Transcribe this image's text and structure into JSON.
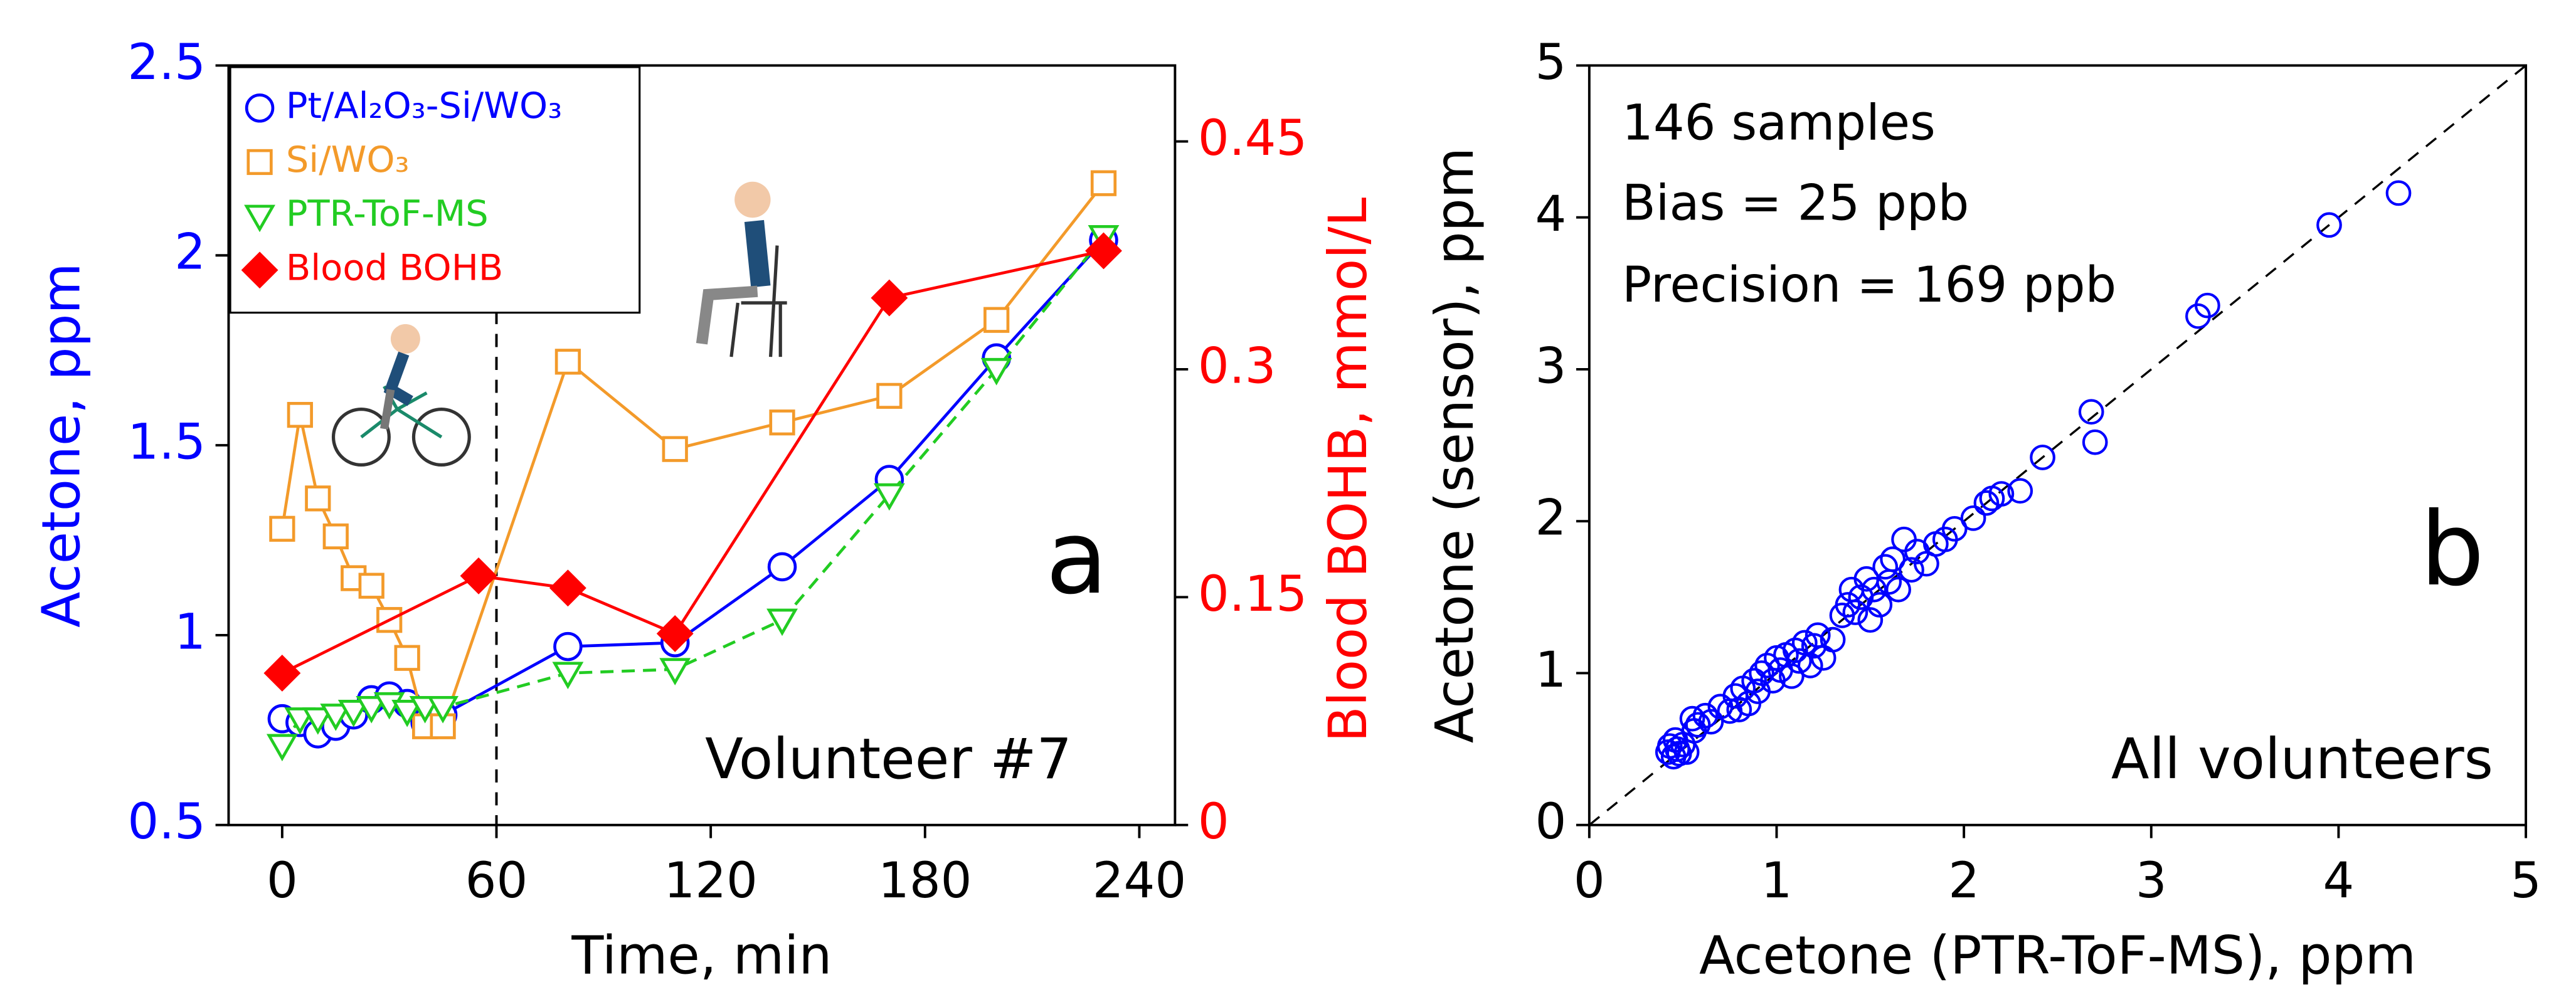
{
  "chart_data": [
    {
      "type": "line",
      "xlabel": "Time, min",
      "ylabel": "Acetone, ppm",
      "y2label": "Blood BOHB, mmol/L",
      "y_color": "#0000ff",
      "y2_color": "#ff0000",
      "xlim": [
        -15,
        250
      ],
      "xticks": [
        0,
        60,
        120,
        180,
        240
      ],
      "ylim": [
        0.5,
        2.5
      ],
      "yticks": [
        0.5,
        1.0,
        1.5,
        2.0,
        2.5
      ],
      "y2lim": [
        0,
        0.5
      ],
      "y2ticks": [
        0,
        0.15,
        0.3,
        0.45
      ],
      "vline_x": 60,
      "annotations": [
        "a",
        "Volunteer #7"
      ],
      "series": [
        {
          "name": "Pt/Al₂O₃-Si/WO₃",
          "color": "#0000ff",
          "marker": "circle",
          "linestyle": "solid",
          "x": [
            0,
            5,
            10,
            15,
            20,
            25,
            30,
            35,
            40,
            45,
            80,
            110,
            140,
            170,
            200,
            230
          ],
          "values": [
            0.78,
            0.77,
            0.74,
            0.76,
            0.79,
            0.83,
            0.84,
            0.82,
            0.77,
            0.79,
            0.97,
            0.98,
            1.18,
            1.41,
            1.73,
            2.04
          ]
        },
        {
          "name": "Si/WO₃",
          "color": "#f39a2a",
          "marker": "square",
          "linestyle": "solid",
          "x": [
            0,
            5,
            10,
            15,
            20,
            25,
            30,
            35,
            40,
            45,
            80,
            110,
            140,
            170,
            200,
            230
          ],
          "values": [
            1.28,
            1.58,
            1.36,
            1.26,
            1.15,
            1.13,
            1.04,
            0.94,
            0.76,
            0.76,
            1.72,
            1.49,
            1.56,
            1.63,
            1.83,
            2.19
          ]
        },
        {
          "name": "PTR-ToF-MS",
          "color": "#22cc22",
          "marker": "triangle-down",
          "linestyle": "dashed",
          "x": [
            0,
            5,
            10,
            15,
            20,
            25,
            30,
            35,
            40,
            45,
            80,
            110,
            140,
            170,
            200,
            230
          ],
          "values": [
            0.71,
            0.78,
            0.78,
            0.79,
            0.8,
            0.81,
            0.82,
            0.8,
            0.81,
            0.81,
            0.9,
            0.91,
            1.04,
            1.37,
            1.7,
            2.05
          ]
        },
        {
          "name": "Blood BOHB",
          "color": "#ff0000",
          "marker": "diamond",
          "linestyle": "solid",
          "axis": "y2",
          "x": [
            0,
            55,
            80,
            110,
            170,
            230
          ],
          "values": [
            0.1,
            0.164,
            0.156,
            0.126,
            0.347,
            0.378
          ]
        }
      ]
    },
    {
      "type": "scatter",
      "xlabel": "Acetone (PTR-ToF-MS), ppm",
      "ylabel": "Acetone (sensor), ppm",
      "xlim": [
        0,
        5
      ],
      "xticks": [
        0,
        1,
        2,
        3,
        4,
        5
      ],
      "ylim": [
        0,
        5
      ],
      "yticks": [
        0,
        1,
        2,
        3,
        4,
        5
      ],
      "identity_line": true,
      "annotations": [
        "146 samples",
        "Bias = 25 ppb",
        "Precision = 169 ppb",
        "All volunteers",
        "b"
      ],
      "series": [
        {
          "name": "All volunteers",
          "color": "#0000ff",
          "x": [
            0.42,
            0.43,
            0.45,
            0.46,
            0.47,
            0.48,
            0.5,
            0.52,
            0.55,
            0.56,
            0.58,
            0.62,
            0.65,
            0.7,
            0.75,
            0.78,
            0.8,
            0.82,
            0.85,
            0.88,
            0.9,
            0.92,
            0.95,
            0.98,
            1.0,
            1.02,
            1.05,
            1.08,
            1.1,
            1.12,
            1.15,
            1.18,
            1.2,
            1.22,
            1.25,
            1.3,
            1.35,
            1.38,
            1.4,
            1.42,
            1.45,
            1.48,
            1.5,
            1.52,
            1.55,
            1.58,
            1.6,
            1.62,
            1.65,
            1.68,
            1.72,
            1.75,
            1.8,
            1.85,
            1.9,
            1.95,
            2.05,
            2.12,
            2.15,
            2.2,
            2.3,
            2.42,
            2.68,
            2.7,
            3.25,
            3.3,
            3.95,
            4.32
          ],
          "values": [
            0.48,
            0.52,
            0.45,
            0.56,
            0.5,
            0.47,
            0.53,
            0.48,
            0.7,
            0.62,
            0.66,
            0.72,
            0.68,
            0.78,
            0.75,
            0.85,
            0.76,
            0.9,
            0.8,
            0.95,
            0.88,
            1.0,
            1.05,
            0.95,
            1.1,
            1.02,
            1.12,
            0.98,
            1.15,
            1.08,
            1.2,
            1.05,
            1.18,
            1.25,
            1.1,
            1.22,
            1.38,
            1.45,
            1.55,
            1.4,
            1.5,
            1.62,
            1.35,
            1.55,
            1.45,
            1.7,
            1.6,
            1.75,
            1.55,
            1.88,
            1.68,
            1.8,
            1.72,
            1.85,
            1.88,
            1.95,
            2.02,
            2.12,
            2.15,
            2.18,
            2.2,
            2.42,
            2.72,
            2.52,
            3.35,
            3.42,
            3.95,
            4.16
          ]
        }
      ]
    }
  ]
}
